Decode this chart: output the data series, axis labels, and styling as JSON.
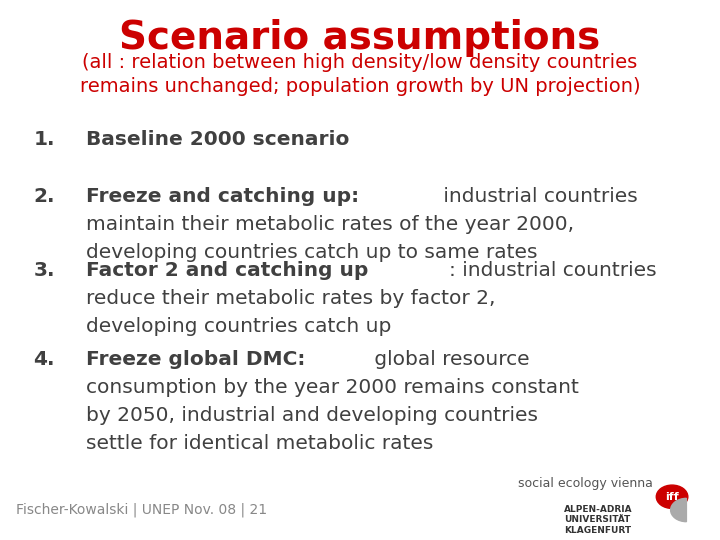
{
  "title": "Scenario assumptions",
  "subtitle": "(all : relation between high density/low density countries\nremains unchanged; population growth by UN projection)",
  "title_color": "#cc0000",
  "subtitle_color": "#cc0000",
  "background_color": "#ffffff",
  "items": [
    {
      "number": "1.",
      "bold_text": "Baseline 2000 scenario",
      "normal_text": ""
    },
    {
      "number": "2.",
      "bold_text": "Freeze and catching up:",
      "normal_text": " industrial countries\nmaintain their metabolic rates of the year 2000,\ndeveloping countries catch up to same rates"
    },
    {
      "number": "3.",
      "bold_text": "Factor 2 and catching up",
      "normal_text": ": industrial countries\nreduce their metabolic rates by factor 2,\ndeveloping countries catch up"
    },
    {
      "number": "4.",
      "bold_text": "Freeze global DMC:",
      "normal_text": " global resource\nconsumption by the year 2000 remains constant\nby 2050, industrial and developing countries\nsettle for identical metabolic rates"
    }
  ],
  "footer_text": "Fischer-Kowalski | UNEP Nov. 08 | 21",
  "text_color": "#404040",
  "font_family": "DejaVu Sans",
  "title_fontsize": 28,
  "subtitle_fontsize": 14,
  "item_fontsize": 14.5,
  "footer_fontsize": 10,
  "logo_text1": "social ecology vienna",
  "logo_text2": "iff",
  "logo_text3": "ALPEN-ADRIA\nUNIVERSITÄT\nKLAGENFURT"
}
